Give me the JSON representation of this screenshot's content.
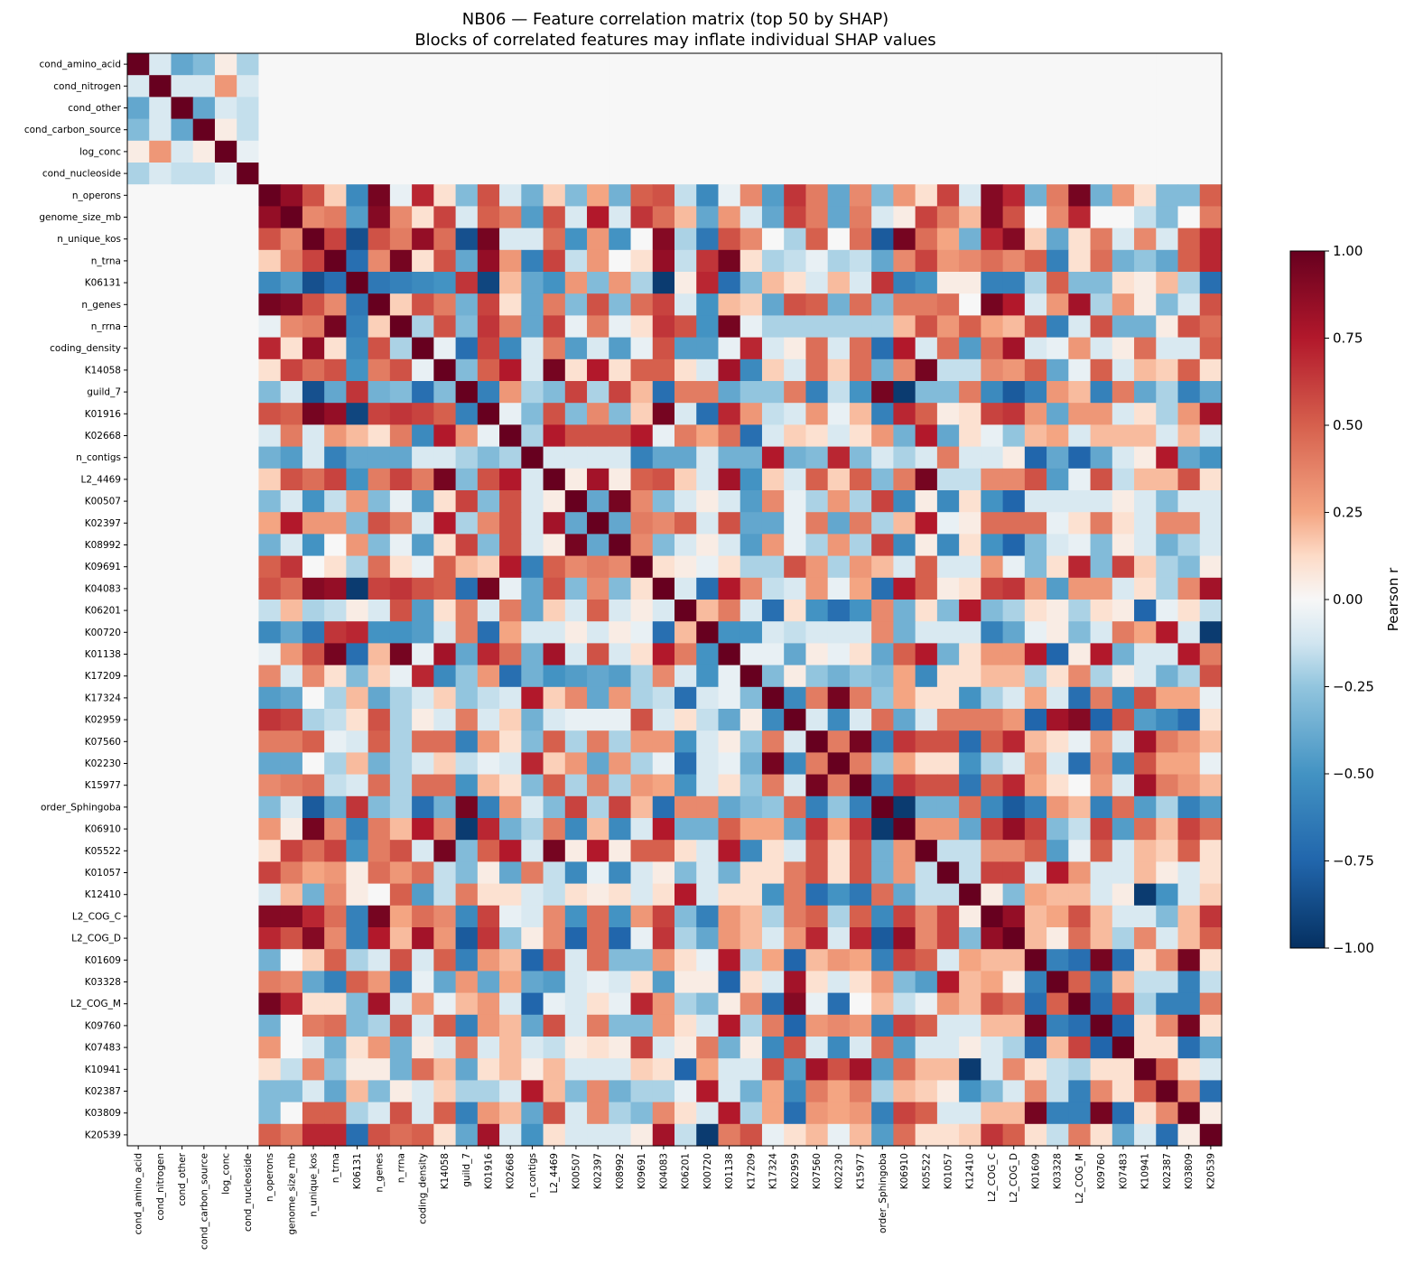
{
  "chart_data": {
    "type": "heatmap",
    "title": "NB06 — Feature correlation matrix (top 50 by SHAP)",
    "subtitle": "Blocks of correlated features may inflate individual SHAP values",
    "colorbar_label": "Pearson r",
    "vmin": -1.0,
    "vmax": 1.0,
    "colorbar_ticks": [
      "1.00",
      "0.75",
      "0.50",
      "0.25",
      "0.00",
      "−0.25",
      "−0.50",
      "−0.75",
      "−1.00"
    ],
    "colormap": "RdBu_r",
    "colors": {
      "low": "#053061",
      "mid": "#f7f7f7",
      "high": "#67001f"
    },
    "features": [
      "cond_amino_acid",
      "cond_nitrogen",
      "cond_other",
      "cond_carbon_source",
      "log_conc",
      "cond_nucleoside",
      "n_operons",
      "genome_size_mb",
      "n_unique_kos",
      "n_trna",
      "K06131",
      "n_genes",
      "n_rrna",
      "coding_density",
      "K14058",
      "guild_7",
      "K01916",
      "K02668",
      "n_contigs",
      "L2_4469",
      "K00507",
      "K02397",
      "K08992",
      "K09691",
      "K04083",
      "K06201",
      "K00720",
      "K01138",
      "K17209",
      "K17324",
      "K02959",
      "K07560",
      "K02230",
      "K15977",
      "order_Sphingoba",
      "K06910",
      "K05522",
      "K01057",
      "K12410",
      "L2_COG_C",
      "L2_COG_D",
      "K01609",
      "K03328",
      "L2_COG_M",
      "K09760",
      "K07483",
      "K10941",
      "K02387",
      "K03809",
      "K20539"
    ],
    "matrix_rows": [
      "1 -0.1 -0.4 -0.3 0.05 -0.2 0 0 0 0 0 0 0 0 0 0 0 0 0 0 0 0 0 0 0 0 0 0 0 0 0 0 0 0 0 0 0 0 0 0 0 0 0 0 0 0 0 0 0 0",
      "-0.1 1 -0.1 -0.1 0.3 -0.1 0 0 0 0 0 0 0 0 0 0 0 0 0 0 0 0 0 0 0 0 0 0 0 0 0 0 0 0 0 0 0 0 0 0 0 0 0 0 0 0 0 0 0 0",
      "-0.4 -0.1 1 -0.4 -0.1 -0.15 0 0 0 0 0 0 0 0 0 0 0 0 0 0 0 0 0 0 0 0 0 0 0 0 0 0 0 0 0 0 0 0 0 0 0 0 0 0 0 0 0 0 0 0",
      "-0.3 -0.1 -0.4 1 0.05 -0.15 0 0 0 0 0 0 0 0 0 0 0 0 0 0 0 0 0 0 0 0 0 0 0 0 0 0 0 0 0 0 0 0 0 0 0 0 0 0 0 0 0 0 0 0",
      "0.05 0.3 -0.1 0.05 1 -0.05 0 0 0 0 0 0 0 0 0 0 0 0 0 0 0 0 0 0 0 0 0 0 0 0 0 0 0 0 0 0 0 0 0 0 0 0 0 0 0 0 0 0 0 0",
      "-0.2 -0.1 -0.15 -0.15 -0.05 1 0 0 0 0 0 0 0 0 0 0 0 0 0 0 0 0 0 0 0 0 0 0 0 0 0 0 0 0 0 0 0 0 0 0 0 0 0 0 0 0 0 0 0 0",
      "0 0 0 0 0 0 1 0.85 0.55 0.15 -0.55 0.95 -0.05 0.7 0.1 -0.3 0.55 -0.1 -0.35 0.15 -0.3 0.25 -0.35 0.5 0.55 -0.15 -0.55 -0.05 0.35 -0.45 0.65 0.4 -0.4 0.35 -0.3 0.3 0.1 0.6 -0.1 0.9 0.7 -0.35 0.4 0.95 -0.35 0.3 0.1 -0.3 -0.3 0.5",
      "0 0 0 0 0 0 0.85 1 0.35 0.4 -0.45 0.9 0.35 0.1 0.6 -0.1 0.5 0.4 -0.45 0.55 -0.1 0.75 -0.1 0.65 0.45 0.2 -0.4 0.3 -0.1 -0.4 0.6 0.4 -0.4 0.4 -0.1 0.05 0.6 0.4 0.2 0.9 0.55 0 0.35 0.7 0 0 -0.15 -0.3 0 0.4",
      "0 0 0 0 0 0 0.55 0.35 1 0.6 -0.85 0.55 0.4 0.85 0.45 -0.85 0.95 -0.1 -0.1 0.45 -0.5 0.3 -0.5 0 0.9 -0.2 -0.65 0.55 0.35 0 -0.2 0.5 0 0.45 -0.8 0.95 0.45 0.25 -0.35 0.7 0.9 0.15 -0.4 0.1 0.4 -0.1 0.35 -0.1 0.5 0.7",
      "0 0 0 0 0 0 0.15 0.4 0.6 1 -0.7 0.35 0.95 0.1 0.55 -0.4 0.85 0.3 -0.6 0.6 -0.15 0.3 0 0.1 0.85 -0.15 0.65 0.95 0.1 -0.2 -0.15 -0.05 -0.2 -0.15 -0.4 0.35 0.6 0.3 0.35 0.45 0.35 0.5 -0.6 0.1 0.45 -0.35 -0.25 -0.4 0.5 0.7",
      "0 0 0 0 0 0 -0.55 -0.45 -0.85 -0.7 1 -0.65 -0.6 -0.55 -0.5 0.65 -0.9 0.2 -0.4 -0.5 0.3 -0.3 0.3 -0.2 -0.95 0.05 0.7 -0.7 -0.3 0.2 0.1 -0.1 0.2 -0.1 0.65 -0.6 -0.5 0.05 0.05 -0.6 -0.6 -0.2 0.5 -0.3 -0.3 0.1 0.05 0.2 -0.2 -0.7",
      "0 0 0 0 0 0 0.95 0.9 0.55 0.35 -0.65 1 0.15 0.55 0.4 -0.35 0.6 0.1 -0.4 0.4 -0.3 0.55 -0.3 0.45 0.6 -0.1 -0.5 0.2 0.15 -0.4 0.55 0.5 -0.35 0.45 -0.3 0.4 0.4 0.45 0 0.95 0.75 -0.1 0.3 0.8 -0.2 0.3 0.05 -0.3 -0.1 0.55",
      "0 0 0 0 0 0 -0.05 0.35 0.4 0.95 -0.6 0.15 1 -0.2 0.55 -0.3 0.65 0.4 -0.4 0.6 -0.05 0.4 -0.05 0.1 0.65 0.55 -0.5 0.95 -0.05 -0.2 -0.2 -0.2 -0.2 -0.2 -0.2 0.2 0.55 0.3 0.5 0.25 0.2 0.55 -0.6 -0.1 0.55 -0.35 -0.35 0.05 0.55 0.45",
      "0 0 0 0 0 0 0.7 0.1 0.85 0.1 -0.55 0.55 -0.2 1 -0.05 -0.7 0.6 -0.55 -0.1 0.4 -0.45 -0.1 -0.45 -0.05 0.55 -0.45 -0.45 -0.05 0.7 -0.1 0.05 0.45 -0.1 0.45 -0.7 0.75 -0.1 0.45 -0.45 0.45 0.8 -0.1 -0.05 0.3 -0.1 0.05 0.45 -0.1 -0.1 0.5",
      "0 0 0 0 0 0 0.1 0.6 0.45 0.55 -0.5 0.4 0.55 -0.05 1 -0.3 0.5 0.75 -0.1 0.95 0.1 0.75 0.1 0.5 0.5 0.1 -0.1 0.8 -0.55 0.15 -0.1 0.45 0.15 0.45 -0.35 0.35 0.95 -0.15 -0.15 0.35 0.3 0.5 -0.4 -0.05 0.5 -0.1 0.2 0.15 0.5 0.1",
      "0 0 0 0 0 0 -0.3 -0.1 -0.85 -0.4 0.65 -0.35 -0.3 -0.7 -0.3 1 -0.6 0.3 -0.2 -0.3 0.6 -0.2 0.6 0.2 -0.7 0.4 0.4 -0.4 -0.25 -0.25 0.4 -0.6 -0.15 -0.5 0.95 -0.95 -0.3 -0.3 0.4 -0.55 -0.8 -0.6 0.3 0.2 -0.6 0.4 -0.4 -0.2 -0.6 -0.4",
      "0 0 0 0 0 0 0.55 0.5 0.95 0.85 -0.9 0.6 0.65 0.6 0.5 -0.6 1 -0.05 -0.3 0.55 -0.3 0.35 -0.3 0.15 0.95 -0.1 -0.7 0.7 0.3 -0.15 -0.1 0.3 -0.05 0.2 -0.6 0.7 0.5 0.05 0.1 0.6 0.65 0.3 -0.4 0.3 0.3 -0.1 0.1 -0.2 0.3 0.8",
      "0 0 0 0 0 0 -0.1 0.4 -0.1 0.3 0.2 0.1 0.4 -0.55 0.75 0.3 -0.05 1 -0.2 0.75 0.55 0.55 0.55 0.75 -0.05 0.4 0.25 0.45 -0.7 -0.1 0.15 0.1 -0.1 0.1 0.3 -0.35 0.75 -0.4 0.1 -0.05 -0.25 0.2 0.25 -0.1 0.2 0.2 0.2 -0.1 0.2 -0.1",
      "0 0 0 0 0 0 -0.35 -0.45 -0.1 -0.6 -0.4 -0.4 -0.4 -0.1 -0.1 -0.2 -0.3 -0.2 1 -0.1 -0.1 -0.1 -0.1 -0.6 -0.4 -0.4 -0.1 -0.35 -0.35 0.75 -0.35 -0.3 0.7 -0.3 -0.1 -0.2 -0.1 0.4 -0.1 -0.1 0.05 -0.75 -0.4 -0.75 -0.4 -0.1 0.05 0.75 -0.4 -0.5",
      "0 0 0 0 0 0 0.15 0.55 0.45 0.6 -0.5 0.4 0.6 0.4 0.95 -0.3 0.55 0.75 -0.1 1 0.05 0.8 0.05 0.5 0.55 0.15 -0.1 0.8 -0.5 0.15 -0.1 0.5 0.15 0.5 -0.3 0.4 0.95 -0.15 -0.15 0.35 0.35 0.55 -0.45 -0.05 0.55 -0.15 0.2 0.2 0.55 0.1",
      "0 0 0 0 0 0 -0.3 -0.1 -0.5 -0.15 0.3 -0.3 -0.05 -0.45 0.1 0.6 -0.3 0.55 -0.1 0.05 1 -0.4 0.95 0.35 -0.3 -0.1 0.05 -0.1 -0.45 0.35 -0.05 -0.2 0.3 -0.2 0.6 -0.55 0.05 -0.55 0.1 -0.5 -0.75 -0.1 -0.1 -0.1 -0.1 0.05 -0.1 -0.3 -0.1 -0.1",
      "0 0 0 0 0 0 0.25 0.75 0.3 0.3 -0.3 0.55 0.4 -0.1 0.75 -0.2 0.35 0.55 -0.1 0.8 -0.4 1 -0.4 0.4 0.35 0.5 -0.1 0.55 -0.4 -0.4 -0.05 0.4 -0.4 0.4 -0.2 0.2 0.75 -0.05 0.05 0.45 0.45 0.45 -0.05 0.1 0.4 0.1 -0.1 0.35 0.35 -0.1",
      "0 0 0 0 0 0 -0.35 -0.1 -0.5 0 0.3 -0.3 -0.05 -0.45 0.1 0.6 -0.3 0.55 -0.1 0.05 0.95 -0.4 1 0.35 -0.3 -0.1 0.05 -0.1 -0.45 0.3 -0.05 -0.2 0.3 -0.2 0.6 -0.55 0.05 -0.55 0.1 -0.5 -0.75 -0.3 -0.1 -0.05 -0.3 0.05 -0.1 -0.35 -0.2 -0.1",
      "0 0 0 0 0 0 0.5 0.65 0 0.1 -0.2 0.45 0.1 -0.05 0.5 0.2 0.15 0.75 -0.6 0.5 0.35 0.4 0.35 1 0.1 0.05 -0.05 0.1 -0.2 -0.2 0.55 0.3 -0.2 0.3 0.2 -0.1 0.5 -0.1 -0.1 0.3 -0.05 -0.3 0.1 0.7 -0.3 0.6 0.15 -0.2 -0.3 0.05",
      "0 0 0 0 0 0 0.55 0.45 0.9 0.85 -0.95 0.6 0.65 0.55 0.5 -0.7 0.95 -0.05 -0.4 0.55 -0.3 0.35 -0.3 0.1 1 -0.1 -0.7 0.75 0.35 -0.15 -0.1 0.3 -0.05 0.25 -0.7 0.75 0.5 0.05 0.1 0.6 0.65 0.3 -0.45 0.3 0.3 -0.1 0.1 -0.2 0.35 0.8",
      "0 0 0 0 0 0 -0.15 0.2 -0.2 -0.15 0.05 -0.1 0.55 -0.45 0.1 0.4 -0.1 0.4 -0.4 0.15 -0.1 0.5 -0.1 0.05 -0.1 1 0.2 0.4 -0.1 -0.7 0.1 -0.5 -0.7 -0.5 0.35 -0.35 0.1 -0.3 0.75 -0.3 -0.2 0.1 0.05 -0.2 0.1 0.05 -0.75 -0.05 0.1 -0.15",
      "0 0 0 0 0 0 -0.55 -0.4 -0.65 0.65 0.7 -0.5 -0.5 -0.45 -0.1 0.4 -0.7 0.25 -0.1 -0.1 0.05 -0.1 0.05 -0.05 -0.7 0.2 1 -0.5 -0.5 -0.1 -0.15 -0.1 -0.1 -0.1 0.35 -0.35 -0.1 -0.1 -0.1 -0.6 -0.4 -0.05 0.05 -0.3 -0.1 0.4 0.25 0.75 -0.1 -0.95",
      "0 0 0 0 0 0 -0.05 0.3 0.55 0.95 -0.7 0.2 0.95 -0.05 0.8 -0.4 0.7 0.45 -0.35 0.8 -0.1 0.55 -0.1 0.1 0.75 0.4 -0.5 1 -0.05 -0.05 -0.4 0.05 -0.05 0.1 -0.4 0.5 0.75 -0.35 0.1 0.3 0.3 0.75 -0.75 0.05 0.75 -0.35 -0.1 -0.1 0.75 0.4",
      "0 0 0 0 0 0 0.35 -0.1 0.35 0.1 -0.3 0.15 -0.05 0.7 -0.55 -0.25 0.3 -0.7 -0.35 -0.5 -0.45 -0.4 -0.45 -0.2 0.35 -0.1 -0.5 -0.05 1 -0.3 0.05 -0.25 -0.35 -0.25 -0.3 0.25 -0.55 0.1 0.1 0.2 0.2 -0.2 0.1 0.35 -0.2 0.05 -0.1 -0.35 -0.2 0.55",
      "0 0 0 0 0 0 -0.45 -0.4 0 -0.2 0.2 -0.4 -0.2 -0.1 0.15 -0.25 -0.15 -0.1 0.75 0.15 0.35 -0.4 0.3 -0.2 -0.15 -0.7 -0.1 -0.05 -0.3 1 -0.55 0.4 0.95 0.4 -0.25 0.25 0.1 0.1 -0.5 -0.2 -0.1 0.25 -0.1 -0.7 0.4 -0.55 0.55 0.25 0.25 -0.05",
      "0 0 0 0 0 0 0.65 0.6 -0.2 -0.15 0.1 0.55 -0.2 0.05 -0.1 0.4 -0.1 0.15 -0.35 -0.1 -0.05 -0.05 -0.05 0.55 -0.1 0.1 -0.15 -0.4 0.05 -0.55 1 -0.1 -0.55 -0.1 0.45 -0.4 -0.1 0.4 0.4 0.4 0.3 -0.75 0.8 0.9 -0.75 0.55 -0.45 -0.55 -0.7 0.1",
      "0 0 0 0 0 0 0.4 0.4 0.5 -0.05 -0.1 0.5 -0.2 0.45 0.45 -0.6 0.3 0.1 -0.3 0.5 -0.2 0.4 -0.2 0.3 0.3 -0.5 -0.1 0.05 -0.25 0.4 -0.1 1 0.4 0.95 -0.6 0.65 0.55 0.55 -0.7 0.5 0.7 0.2 0.1 -0.05 0.3 -0.1 0.8 0.4 0.3 0.2",
      "0 0 0 0 0 0 -0.4 -0.4 0 -0.2 0.2 -0.35 -0.2 -0.1 0.15 -0.15 -0.05 -0.1 0.7 0.15 0.3 -0.4 0.3 -0.2 -0.05 -0.7 -0.1 -0.05 -0.35 0.95 -0.55 0.4 1 0.4 -0.25 0.25 0.1 0.1 -0.5 -0.2 -0.1 0.3 -0.1 -0.7 0.35 -0.55 0.55 0.25 0.25 -0.05",
      "0 0 0 0 0 0 0.35 0.4 0.45 -0.15 -0.1 0.45 -0.2 0.45 0.45 -0.5 0.2 0.1 -0.3 0.5 -0.2 0.4 -0.2 0.3 0.25 -0.5 -0.1 0.1 -0.25 0.4 -0.1 0.95 0.4 1 -0.6 0.65 0.55 0.55 -0.65 0.5 0.7 0.25 0.1 0 0.3 -0.1 0.8 0.4 0.3 0.2",
      "0 0 0 0 0 0 -0.3 -0.1 -0.8 -0.4 0.65 -0.3 -0.2 -0.7 -0.35 0.95 -0.6 0.3 -0.1 -0.3 0.6 -0.2 0.6 0.2 -0.7 0.35 0.35 -0.4 -0.3 -0.25 0.45 -0.6 -0.25 -0.6 1 -0.95 -0.35 -0.35 0.45 -0.55 -0.8 -0.6 0.3 0.2 -0.6 0.45 -0.45 -0.2 -0.6 -0.45",
      "0 0 0 0 0 0 0.3 0.05 0.95 0.35 -0.6 0.4 0.2 0.75 0.35 -0.95 0.7 -0.35 -0.2 0.4 -0.55 0.2 -0.55 -0.1 0.75 -0.35 -0.35 0.5 0.25 0.25 -0.4 0.65 0.25 0.65 -0.95 1 0.3 0.3 -0.4 0.6 0.85 0.6 -0.3 -0.15 0.6 -0.45 0.45 0.2 0.6 0.45",
      "0 0 0 0 0 0 0.1 0.6 0.45 0.6 -0.5 0.4 0.55 -0.1 0.95 -0.3 0.5 0.75 -0.1 0.95 0.05 0.75 0.05 0.5 0.5 0.1 -0.1 0.75 -0.55 0.1 -0.1 0.55 0.1 0.55 -0.35 0.3 1 -0.15 -0.15 0.35 0.35 0.5 -0.45 -0.05 0.5 -0.1 0.2 0.15 0.5 0.1",
      "0 0 0 0 0 0 0.6 0.4 0.25 0.3 0.05 0.45 0.3 0.45 -0.15 -0.3 0.05 -0.4 0.4 -0.15 -0.55 -0.05 -0.55 -0.1 0.05 -0.3 -0.1 -0.35 0.1 0.1 0.4 0.55 0.1 0.55 -0.35 0.3 -0.15 1 -0.15 0.6 0.6 -0.1 0.75 0.3 -0.1 -0.1 0.2 0.05 -0.1 0.1",
      "0 0 0 0 0 0 -0.1 0.2 -0.35 0.35 0.05 0 0.5 -0.45 -0.15 0.4 0.1 0.1 -0.1 -0.15 0.1 0.05 0.1 -0.1 0.1 0.75 -0.1 0.1 0.1 -0.5 0.4 -0.7 -0.5 -0.65 0.45 -0.4 -0.15 -0.15 1 0.05 -0.3 0.25 0.2 0.2 -0.1 0.05 -0.95 -0.5 -0.1 0.15",
      "0 0 0 0 0 0 0.9 0.9 0.7 0.45 -0.6 0.95 0.25 0.45 0.35 -0.55 0.6 -0.05 -0.1 0.35 -0.5 0.45 -0.5 0.3 0.6 -0.3 -0.6 0.3 0.2 -0.2 0.4 0.5 -0.2 0.5 -0.55 0.6 0.35 0.6 0.05 1 0.85 0.2 0.25 0.55 0.2 -0.1 -0.1 -0.3 0.2 0.65",
      "0 0 0 0 0 0 0.7 0.55 0.9 0.35 -0.6 0.75 0.2 0.8 0.3 -0.8 0.65 -0.25 0.05 0.35 -0.75 0.45 -0.75 -0.05 0.65 -0.2 -0.4 0.3 0.2 -0.1 0.3 0.7 -0.1 0.7 -0.8 0.85 0.35 0.6 -0.3 0.85 1 0.2 0.05 0.45 0.2 -0.2 0.35 -0.1 0.2 0.5",
      "0 0 0 0 0 0 -0.35 0 0.15 0.5 -0.2 -0.1 0.55 -0.1 0.5 -0.6 0.3 0.2 -0.75 0.55 -0.1 0.45 -0.3 -0.3 0.3 0.1 -0.05 0.75 -0.2 0.25 -0.75 0.2 0.3 0.25 -0.6 0.6 0.5 -0.1 0.25 0.2 0.2 1 -0.6 -0.7 0.95 -0.7 0.1 0.35 0.95 0.1",
      "0 0 0 0 0 0 0.4 0.35 -0.4 -0.6 0.5 0.3 -0.6 -0.05 -0.4 0.3 -0.4 0.25 -0.4 -0.45 -0.1 -0.05 -0.1 0.1 -0.45 0.05 0.05 -0.75 0.1 -0.1 0.8 0.1 -0.1 0.1 0.3 -0.3 -0.45 0.75 0.2 0.25 0.05 -0.6 1 0.5 -0.6 0.2 -0.15 -0.15 -0.6 -0.15",
      "0 0 0 0 0 0 0.95 0.7 0.1 0.1 -0.3 0.8 -0.1 0.3 -0.05 0.2 0.3 -0.1 -0.75 -0.05 -0.1 0.1 -0.05 0.7 0.3 -0.2 -0.3 0.05 0.35 -0.7 0.9 -0.05 -0.7 0 0.2 -0.15 -0.05 0.3 0.2 0.55 0.45 -0.7 0.5 1 -0.7 0.6 -0.2 -0.6 -0.6 0.4",
      "0 0 0 0 0 0 -0.35 0 0.4 0.45 -0.3 -0.2 0.55 -0.1 0.5 -0.6 0.3 0.2 -0.4 0.55 -0.1 0.4 -0.3 -0.3 0.3 0.1 -0.1 0.75 -0.2 0.4 -0.75 0.3 0.35 0.3 -0.6 0.6 0.5 -0.1 -0.1 0.2 0.2 0.95 -0.6 -0.7 1 -0.75 0.1 0.35 0.95 0.1",
      "0 0 0 0 0 0 0.3 0 -0.1 -0.35 0.1 0.3 -0.35 0.05 -0.1 0.4 -0.1 0.2 -0.1 -0.15 0.05 0.1 0.05 0.6 -0.1 0.05 0.4 -0.35 0.05 -0.55 0.55 -0.1 -0.55 -0.1 0.45 -0.45 -0.1 -0.1 0.05 -0.1 -0.2 -0.7 0.2 0.6 -0.75 1 0.1 0.1 -0.7 -0.4",
      "0 0 0 0 0 0 0.1 -0.15 0.35 -0.25 0.05 0.05 -0.35 0.45 0.2 -0.4 0.1 0.2 0.05 0.2 -0.1 -0.1 -0.1 0.15 0.1 -0.75 0.25 -0.1 -0.1 0.55 -0.45 0.8 0.55 0.8 -0.45 0.45 0.2 0.2 -0.95 -0.1 0.35 0.1 -0.15 -0.2 0.1 0.1 1 0.5 0.1 -0.1",
      "0 0 0 0 0 0 -0.3 -0.3 -0.1 -0.4 0.2 -0.3 0.05 -0.1 0.15 -0.2 -0.2 -0.1 0.75 0.2 -0.3 0.35 -0.35 -0.2 -0.2 -0.05 0.75 -0.1 -0.35 0.25 -0.55 0.4 0.25 0.4 -0.2 0.2 0.15 0.05 -0.5 -0.3 -0.1 0.35 -0.15 -0.6 0.35 0.1 0.5 1 0.35 -0.7",
      "0 0 0 0 0 0 -0.3 0 0.5 0.5 -0.2 -0.1 0.55 -0.1 0.5 -0.6 0.3 0.2 -0.4 0.55 -0.1 0.35 -0.2 -0.3 0.35 0.1 -0.1 0.75 -0.2 0.25 -0.7 0.3 0.25 0.3 -0.6 0.6 0.5 -0.1 -0.1 0.2 0.2 0.95 -0.6 -0.6 0.95 -0.7 0.1 0.35 1 0.05",
      "0 0 0 0 0 0 0.5 0.4 0.7 0.7 -0.7 0.55 0.45 0.5 0.1 -0.4 0.8 -0.1 -0.5 0.1 -0.1 -0.1 -0.1 0.05 0.8 -0.15 -0.95 0.4 0.55 -0.05 0.1 0.2 -0.05 0.2 -0.45 0.45 0.1 0.1 0.15 0.65 0.5 0.1 -0.15 0.4 0.1 -0.4 -0.1 -0.7 0.05 1"
    ]
  }
}
